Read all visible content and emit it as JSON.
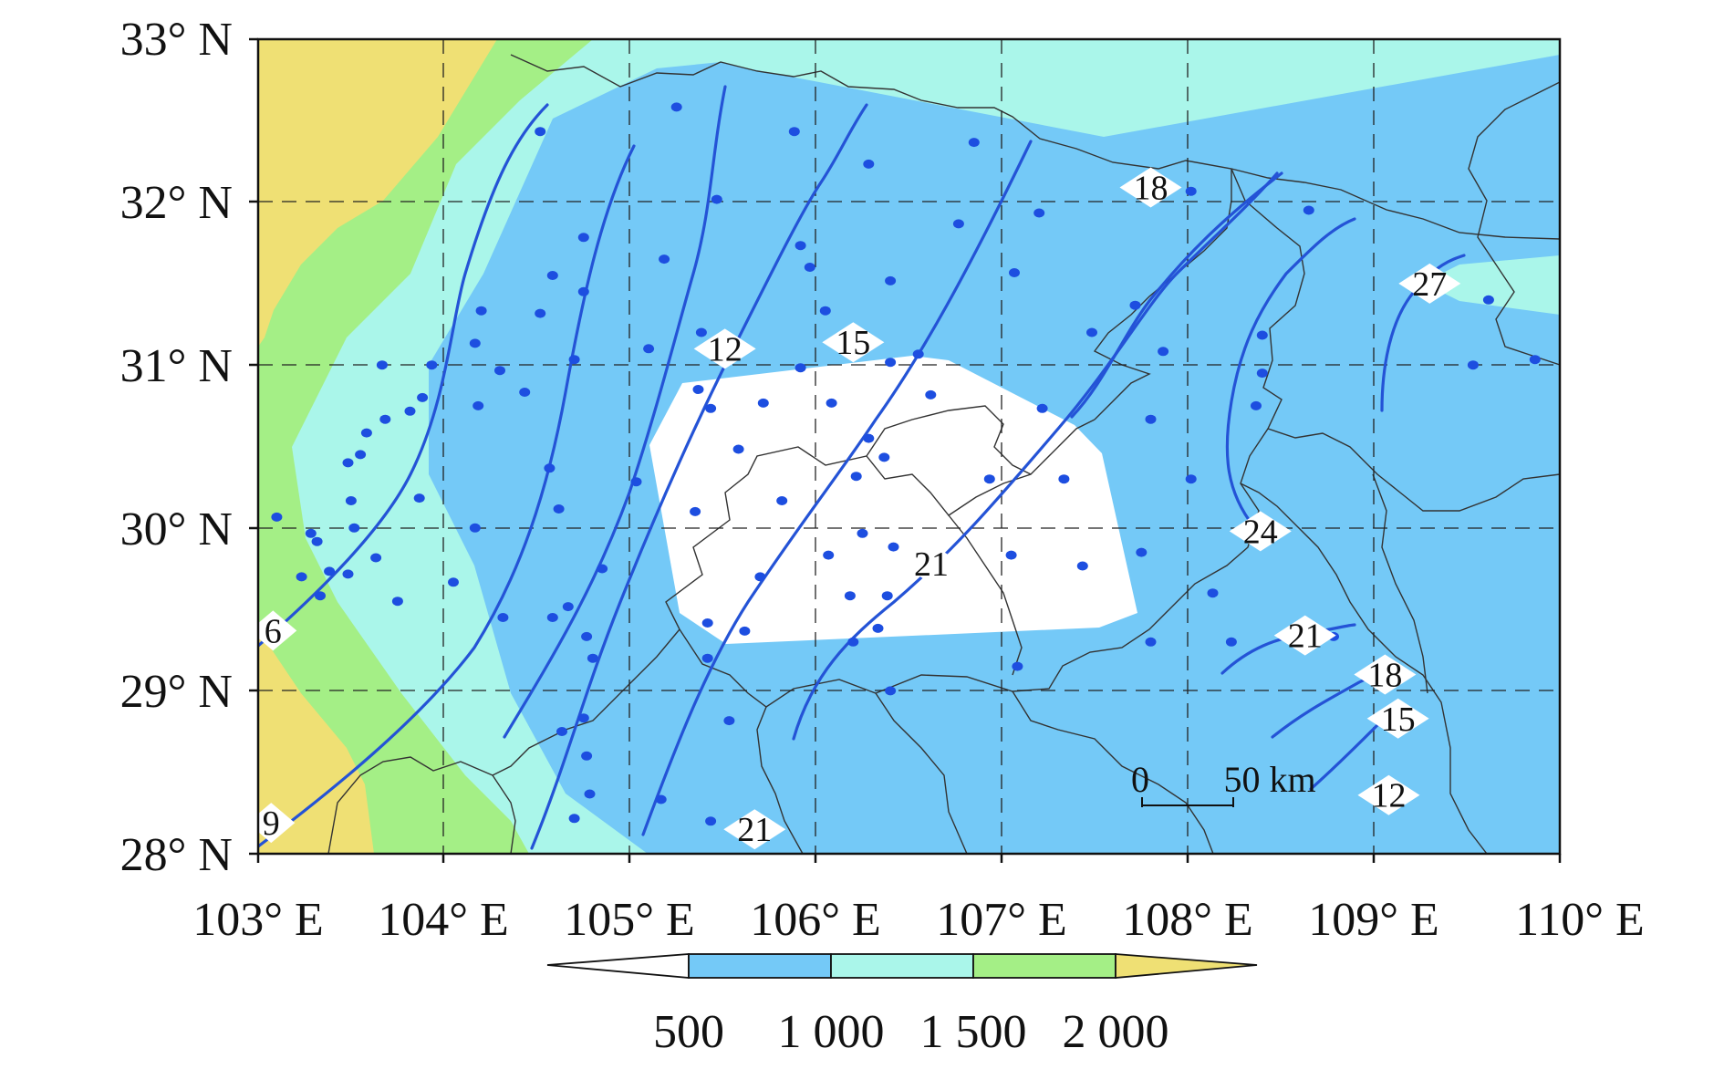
{
  "colors": {
    "under_500": "#ffffff",
    "band_500_1000": "#74c9f7",
    "band_1000_1500": "#aaf6ea",
    "band_1500_2000": "#a4ef86",
    "over_2000": "#efe074",
    "contour_line": "#2453d6",
    "station_dot": "#1d4ee0",
    "border": "#333333"
  },
  "axes": {
    "x_ticks": [
      "103° E",
      "104° E",
      "105° E",
      "106° E",
      "107° E",
      "108° E",
      "109° E",
      "110° E"
    ],
    "y_ticks": [
      "33° N",
      "32° N",
      "31° N",
      "30° N",
      "29° N",
      "28° N"
    ]
  },
  "contour_labels": [
    {
      "text": "6",
      "lon": 103.08,
      "lat": 29.37
    },
    {
      "text": "9",
      "lon": 103.07,
      "lat": 28.19
    },
    {
      "text": "12",
      "lon": 105.51,
      "lat": 31.1
    },
    {
      "text": "15",
      "lon": 106.2,
      "lat": 31.14
    },
    {
      "text": "18",
      "lon": 107.8,
      "lat": 32.09
    },
    {
      "text": "21",
      "lon": 106.62,
      "lat": 29.78
    },
    {
      "text": "24",
      "lon": 108.39,
      "lat": 29.98
    },
    {
      "text": "27",
      "lon": 109.3,
      "lat": 31.5
    },
    {
      "text": "21",
      "lon": 108.63,
      "lat": 29.34
    },
    {
      "text": "18",
      "lon": 109.06,
      "lat": 29.1
    },
    {
      "text": "15",
      "lon": 109.13,
      "lat": 28.83
    },
    {
      "text": "12",
      "lon": 109.08,
      "lat": 28.36
    },
    {
      "text": "21",
      "lon": 105.67,
      "lat": 28.15
    }
  ],
  "scale_bar": {
    "start_label": "0",
    "end_label": "50 km"
  },
  "legend": {
    "labels": [
      "500",
      "1 000",
      "1 500",
      "2 000"
    ]
  },
  "stations": [
    [
      105.15,
      32.35
    ],
    [
      105.53,
      32.26
    ],
    [
      104.31,
      32.26
    ],
    [
      106.17,
      32.14
    ],
    [
      106.51,
      32.22
    ],
    [
      105.28,
      32.01
    ],
    [
      108.01,
      32.04
    ],
    [
      108.39,
      31.57
    ],
    [
      107.12,
      31.56
    ],
    [
      106.46,
      31.52
    ],
    [
      105.55,
      31.44
    ],
    [
      105.58,
      31.36
    ],
    [
      105.11,
      31.39
    ],
    [
      104.45,
      31.47
    ],
    [
      104.35,
      31.33
    ],
    [
      104.45,
      31.27
    ],
    [
      104.31,
      31.19
    ],
    [
      104.12,
      31.2
    ],
    [
      104.1,
      31.08
    ],
    [
      104.42,
      31.02
    ],
    [
      103.4,
      31.0
    ],
    [
      105.06,
      31.06
    ],
    [
      105.23,
      31.12
    ],
    [
      106.03,
      31.2
    ],
    [
      106.24,
      31.31
    ],
    [
      106.24,
      31.01
    ],
    [
      106.33,
      31.04
    ],
    [
      107.04,
      31.34
    ],
    [
      107.43,
      31.22
    ],
    [
      107.29,
      31.12
    ],
    [
      107.52,
      31.05
    ],
    [
      108.24,
      31.11
    ],
    [
      109.37,
      31.24
    ],
    [
      109.32,
      31.0
    ],
    [
      109.52,
      31.02
    ],
    [
      103.56,
      30.6
    ],
    [
      103.53,
      30.48
    ],
    [
      103.49,
      30.43
    ],
    [
      103.41,
      30.4
    ],
    [
      103.35,
      30.35
    ],
    [
      103.29,
      30.24
    ],
    [
      103.33,
      30.27
    ],
    [
      103.3,
      30.1
    ],
    [
      103.31,
      30.0
    ],
    [
      103.52,
      30.11
    ],
    [
      103.06,
      30.04
    ],
    [
      104.18,
      30.58
    ],
    [
      104.26,
      30.5
    ],
    [
      104.11,
      30.45
    ],
    [
      104.34,
      30.22
    ],
    [
      104.37,
      30.07
    ],
    [
      104.1,
      30.0
    ],
    [
      105.22,
      30.51
    ],
    [
      105.26,
      30.44
    ],
    [
      105.43,
      30.46
    ],
    [
      105.55,
      30.59
    ],
    [
      105.35,
      30.29
    ],
    [
      105.21,
      30.06
    ],
    [
      105.49,
      30.1
    ],
    [
      105.02,
      30.17
    ],
    [
      106.05,
      30.46
    ],
    [
      106.37,
      30.49
    ],
    [
      106.17,
      30.33
    ],
    [
      106.22,
      30.26
    ],
    [
      106.13,
      30.19
    ],
    [
      106.56,
      30.18
    ],
    [
      107.13,
      30.44
    ],
    [
      107.48,
      30.4
    ],
    [
      107.2,
      30.18
    ],
    [
      108.24,
      30.57
    ],
    [
      108.22,
      30.45
    ],
    [
      108.01,
      30.18
    ],
    [
      103.38,
      29.49
    ],
    [
      103.19,
      29.55
    ],
    [
      103.23,
      29.44
    ],
    [
      103.14,
      29.42
    ],
    [
      103.29,
      29.43
    ],
    [
      103.2,
      29.35
    ],
    [
      103.45,
      29.33
    ],
    [
      104.03,
      29.4
    ],
    [
      104.19,
      29.27
    ],
    [
      104.35,
      29.27
    ],
    [
      104.4,
      29.31
    ],
    [
      104.48,
      29.12
    ],
    [
      104.46,
      29.2
    ],
    [
      104.51,
      29.45
    ],
    [
      105.25,
      29.25
    ],
    [
      105.37,
      29.22
    ],
    [
      105.42,
      29.42
    ],
    [
      105.25,
      29.12
    ],
    [
      106.04,
      29.5
    ],
    [
      106.15,
      29.58
    ],
    [
      106.25,
      29.53
    ],
    [
      106.33,
      29.45
    ],
    [
      106.23,
      29.35
    ],
    [
      106.11,
      29.35
    ],
    [
      106.12,
      29.18
    ],
    [
      106.2,
      29.23
    ],
    [
      106.24,
      29.0
    ],
    [
      107.03,
      29.5
    ],
    [
      107.26,
      29.46
    ],
    [
      107.45,
      29.51
    ],
    [
      107.05,
      29.09
    ],
    [
      107.48,
      29.18
    ],
    [
      108.08,
      29.36
    ],
    [
      108.14,
      29.18
    ],
    [
      108.47,
      29.2
    ],
    [
      104.45,
      28.5
    ],
    [
      104.38,
      28.45
    ],
    [
      104.46,
      28.36
    ],
    [
      104.47,
      28.22
    ],
    [
      105.32,
      28.49
    ],
    [
      105.1,
      28.2
    ],
    [
      105.26,
      28.12
    ],
    [
      104.42,
      28.13
    ],
    [
      103.17,
      29.58
    ]
  ]
}
